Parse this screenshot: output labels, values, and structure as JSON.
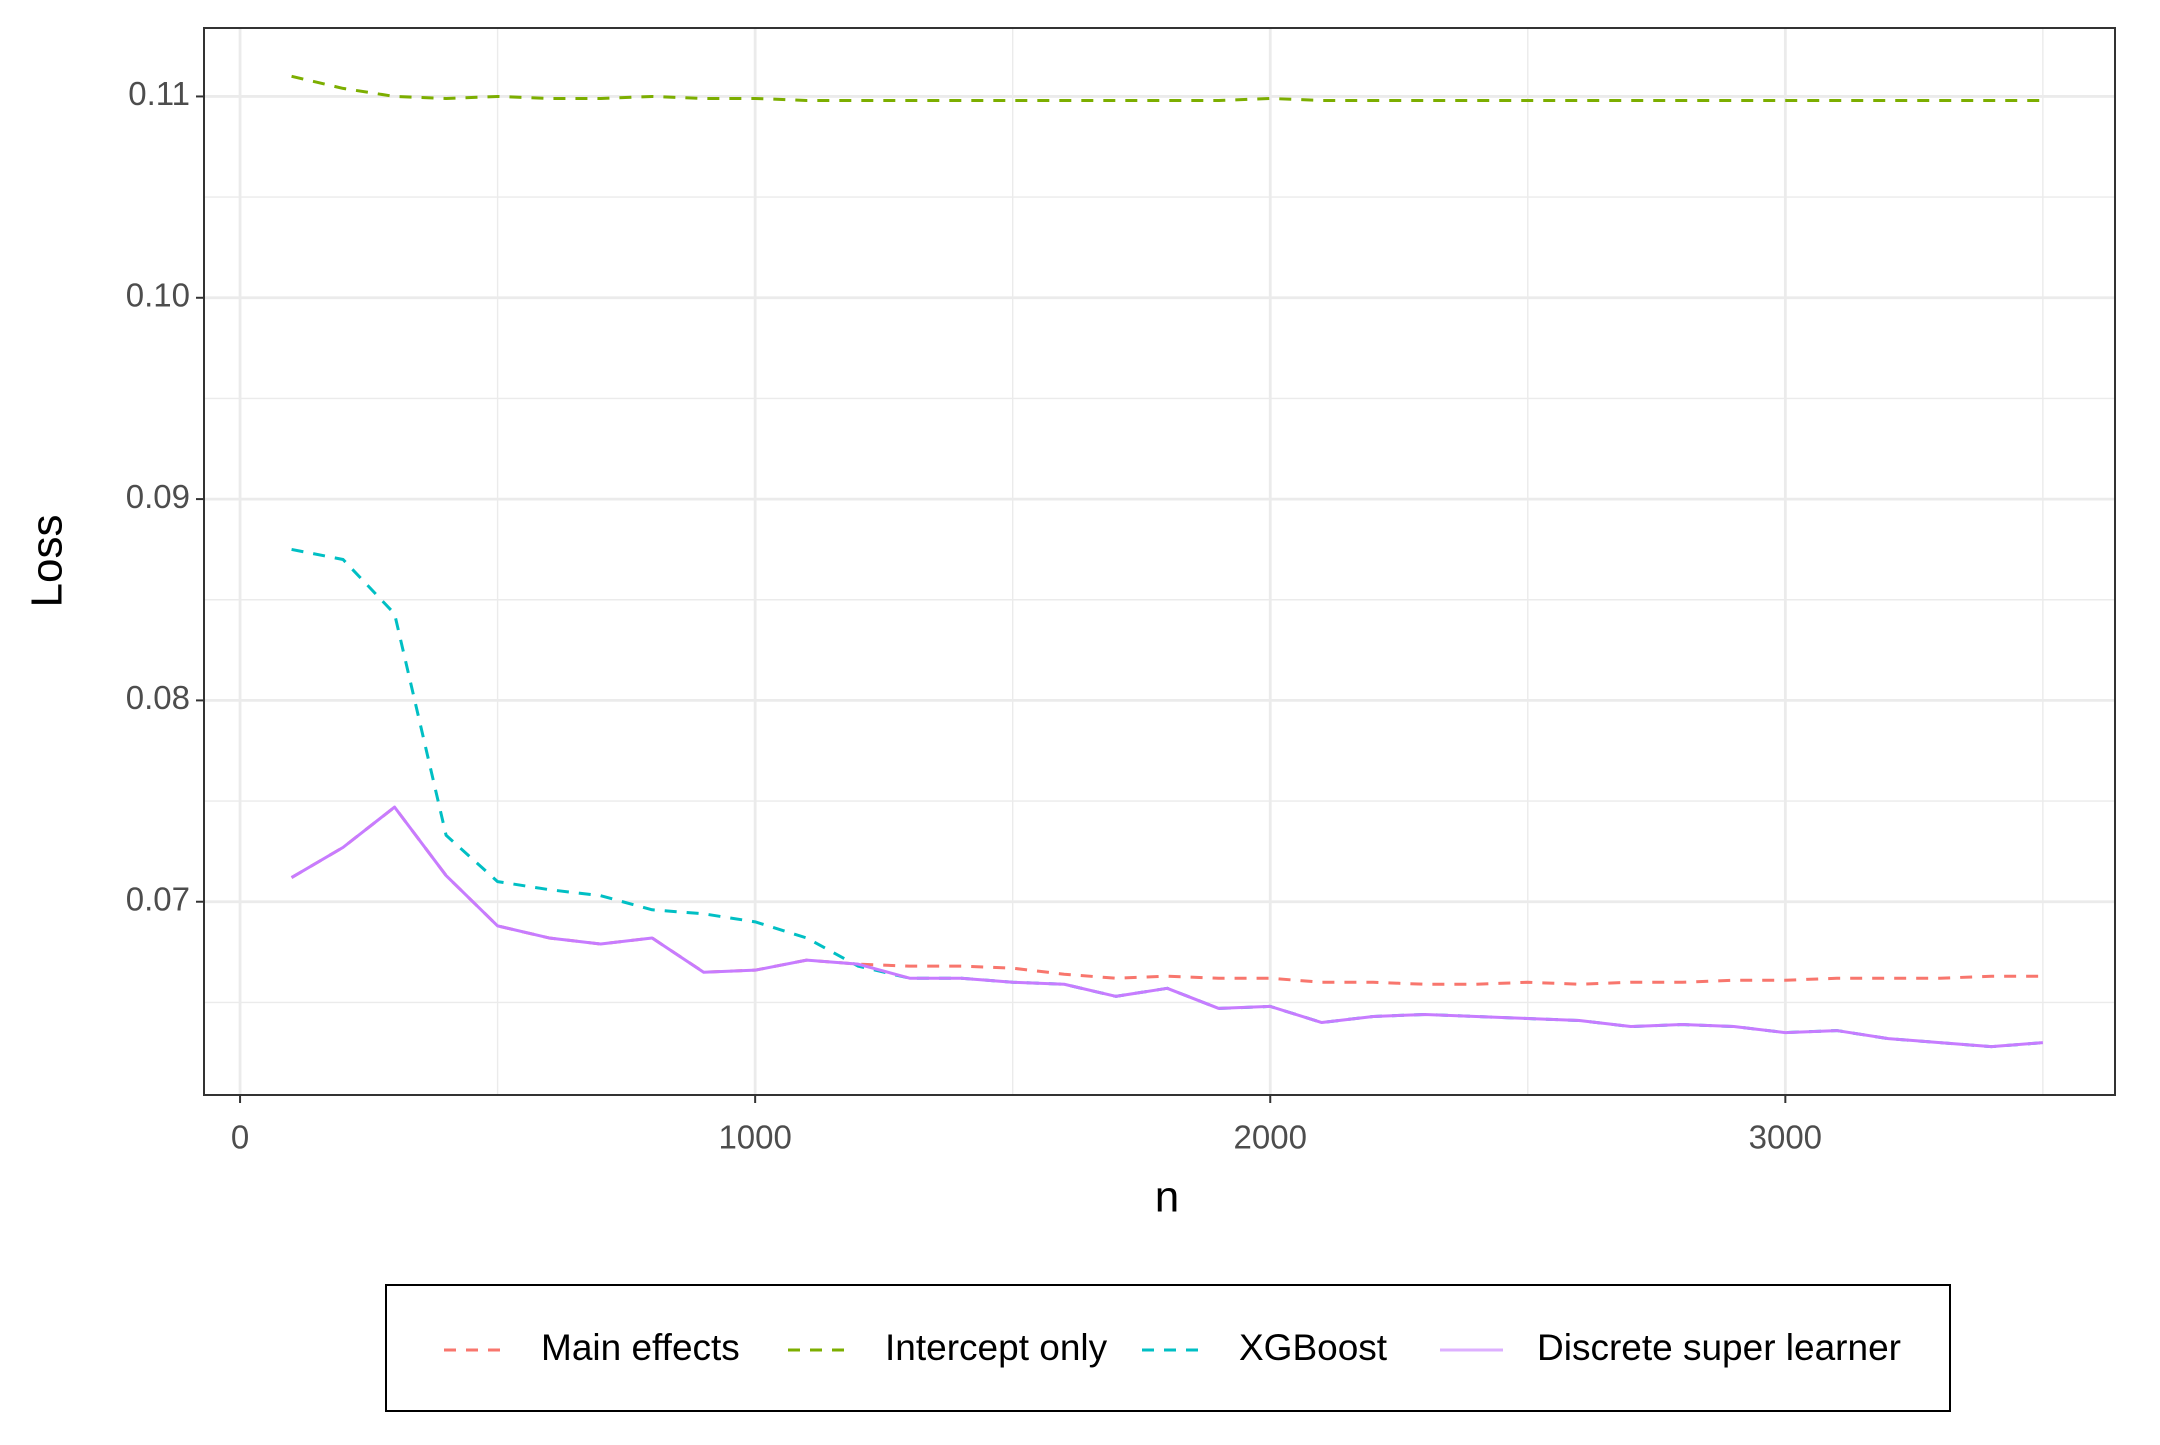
{
  "chart_data": {
    "type": "line",
    "x_label": "n",
    "y_label": "Loss",
    "x": [
      100,
      200,
      300,
      400,
      500,
      600,
      700,
      800,
      900,
      1000,
      1100,
      1200,
      1300,
      1400,
      1500,
      1600,
      1700,
      1800,
      1900,
      2000,
      2100,
      2200,
      2300,
      2400,
      2500,
      2600,
      2700,
      2800,
      2900,
      3000,
      3100,
      3200,
      3300,
      3400,
      3500
    ],
    "series": [
      {
        "name": "Main effects",
        "color": "#F8766D",
        "dashed": true,
        "values": [
          0.0712,
          0.0727,
          0.0747,
          0.0713,
          0.0688,
          0.0682,
          0.0679,
          0.0682,
          0.0665,
          0.0666,
          0.0671,
          0.0669,
          0.0668,
          0.0668,
          0.0667,
          0.0664,
          0.0662,
          0.0663,
          0.0662,
          0.0662,
          0.066,
          0.066,
          0.0659,
          0.0659,
          0.066,
          0.0659,
          0.066,
          0.066,
          0.0661,
          0.0661,
          0.0662,
          0.0662,
          0.0662,
          0.0663,
          0.0663
        ]
      },
      {
        "name": "Intercept only",
        "color": "#7CAE00",
        "dashed": true,
        "values": [
          0.111,
          0.1104,
          0.11,
          0.1099,
          0.11,
          0.1099,
          0.1099,
          0.11,
          0.1099,
          0.1099,
          0.1098,
          0.1098,
          0.1098,
          0.1098,
          0.1098,
          0.1098,
          0.1098,
          0.1098,
          0.1098,
          0.1099,
          0.1098,
          0.1098,
          0.1098,
          0.1098,
          0.1098,
          0.1098,
          0.1098,
          0.1098,
          0.1098,
          0.1098,
          0.1098,
          0.1098,
          0.1098,
          0.1098,
          0.1098
        ]
      },
      {
        "name": "XGBoost",
        "color": "#00BFC4",
        "dashed": true,
        "values": [
          0.0875,
          0.087,
          0.0843,
          0.0733,
          0.071,
          0.0706,
          0.0703,
          0.0696,
          0.0694,
          0.069,
          0.0682,
          0.0668,
          0.0662,
          0.0662,
          0.066,
          0.0659,
          0.0653,
          0.0657,
          0.0647,
          0.0648,
          0.064,
          0.0643,
          0.0644,
          0.0643,
          0.0642,
          0.0641,
          0.0638,
          0.0639,
          0.0638,
          0.0635,
          0.0636,
          0.0632,
          0.063,
          0.0628,
          0.063
        ]
      },
      {
        "name": "Discrete super learner",
        "color": "#C77CFF",
        "dashed": false,
        "values": [
          0.0712,
          0.0727,
          0.0747,
          0.0713,
          0.0688,
          0.0682,
          0.0679,
          0.0682,
          0.0665,
          0.0666,
          0.0671,
          0.0669,
          0.0662,
          0.0662,
          0.066,
          0.0659,
          0.0653,
          0.0657,
          0.0647,
          0.0648,
          0.064,
          0.0643,
          0.0644,
          0.0643,
          0.0642,
          0.0641,
          0.0638,
          0.0639,
          0.0638,
          0.0635,
          0.0636,
          0.0632,
          0.063,
          0.0628,
          0.063
        ]
      }
    ],
    "xlim": [
      -70,
      3640
    ],
    "ylim": [
      0.0604,
      0.1134
    ],
    "xticks": [
      0,
      1000,
      2000,
      3000
    ],
    "yticks": [
      0.07,
      0.08,
      0.09,
      {
        "value": 0.1,
        "label": "0.10"
      },
      0.11
    ],
    "x_minor_ticks": [
      500,
      1500,
      2500,
      3500
    ],
    "y_minor_ticks": [
      0.065,
      0.075,
      0.085,
      0.095,
      0.105
    ],
    "grid": true,
    "legend": "bottom"
  }
}
